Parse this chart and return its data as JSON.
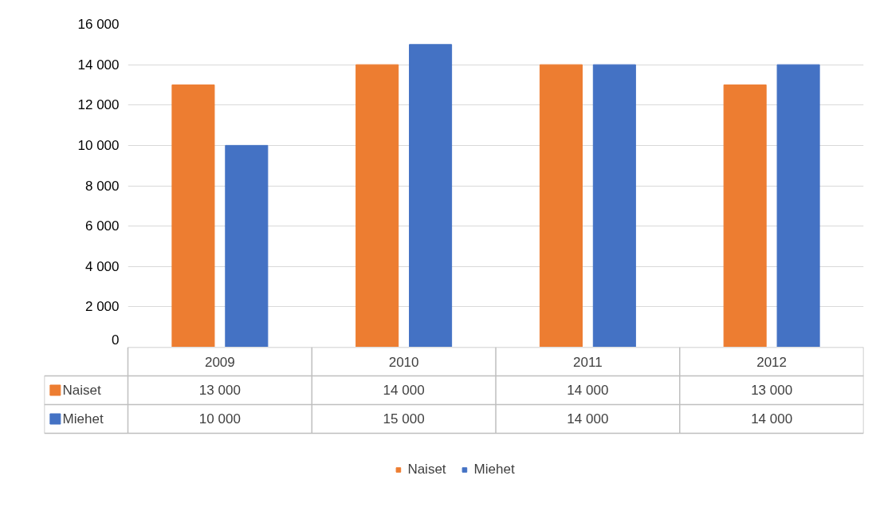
{
  "chart_data": {
    "type": "bar",
    "categories": [
      "2009",
      "2010",
      "2011",
      "2012"
    ],
    "series": [
      {
        "name": "Naiset",
        "color": "#ed7d31",
        "values": [
          13000,
          14000,
          14000,
          13000
        ],
        "value_labels": [
          "13 000",
          "14 000",
          "14 000",
          "13 000"
        ]
      },
      {
        "name": "Miehet",
        "color": "#4472c4",
        "values": [
          10000,
          15000,
          14000,
          14000
        ],
        "value_labels": [
          "10 000",
          "15 000",
          "14 000",
          "14 000"
        ]
      }
    ],
    "ylim": [
      0,
      16000
    ],
    "yticks": [
      {
        "value": 0,
        "label": "0"
      },
      {
        "value": 2000,
        "label": "2 000"
      },
      {
        "value": 4000,
        "label": "4 000"
      },
      {
        "value": 6000,
        "label": "6 000"
      },
      {
        "value": 8000,
        "label": "8 000"
      },
      {
        "value": 10000,
        "label": "10 000"
      },
      {
        "value": 12000,
        "label": "12 000"
      },
      {
        "value": 14000,
        "label": "14 000"
      },
      {
        "value": 16000,
        "label": "16 000"
      }
    ],
    "grid": "y",
    "legend": "bottom"
  }
}
